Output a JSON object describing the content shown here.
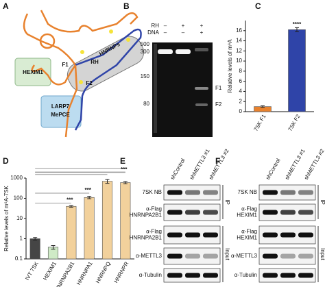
{
  "panels": {
    "A": {
      "label": "A",
      "labels": [
        "HEXIM1",
        "F1",
        "RH",
        "F2",
        "HNRNPs",
        "LARP7",
        "MePCE"
      ]
    },
    "B": {
      "label": "B",
      "conditions": [
        "RH",
        "DNA"
      ],
      "signs": [
        [
          "–",
          "+",
          "+"
        ],
        [
          "–",
          "–",
          "+"
        ]
      ],
      "ladder": [
        "500",
        "300",
        "150",
        "80"
      ],
      "bands": [
        "F1",
        "F2"
      ]
    },
    "E": {
      "label": "E",
      "columns": [
        "shControl",
        "shMETTL3 #1",
        "shMETTL3 #2"
      ],
      "rows": [
        [
          "7SK NB"
        ],
        [
          "α-Flag",
          "HNRNPA2B1"
        ],
        [
          "α-Flag",
          "HNRNPA2B1"
        ],
        [
          "α-METTL3"
        ],
        [
          "α-Tubulin"
        ]
      ],
      "side_labels": [
        "IP",
        "Input"
      ]
    },
    "F": {
      "label": "F",
      "columns": [
        "shControl",
        "shMETTL3 #1",
        "shMETTL3 #2"
      ],
      "rows": [
        [
          "7SK NB"
        ],
        [
          "α-Flag",
          "HEXIM1"
        ],
        [
          "α-Flag",
          "HEXIM1"
        ],
        [
          "α-METTL3"
        ],
        [
          "α-Tubulin"
        ]
      ],
      "side_labels": [
        "IP",
        "Input"
      ]
    }
  },
  "chart_data": [
    {
      "type": "bar",
      "panel_label": "C",
      "ylabel": "Relative levels of m⁶A",
      "categories": [
        "7SK F1",
        "7SK F2"
      ],
      "values": [
        1,
        16.2
      ],
      "errors": [
        0.15,
        0.4
      ],
      "colors": [
        "#e8822e",
        "#2f44a8"
      ],
      "ylim": [
        0,
        18
      ],
      "yticks": [
        0,
        2,
        4,
        6,
        8,
        10,
        12,
        14,
        16
      ],
      "annotations": [
        "****"
      ]
    },
    {
      "type": "bar",
      "panel_label": "D",
      "ylabel": "Relative levels of m⁶A-7SK",
      "log_scale": true,
      "categories": [
        "IVT 7SK",
        "HEXIM1",
        "HNRNPA2B1",
        "HNRNPA1",
        "HNRNPQ",
        "HNRNPR"
      ],
      "values": [
        1,
        0.38,
        40,
        110,
        700,
        600
      ],
      "errors": [
        0.15,
        0.08,
        4,
        15,
        150,
        80
      ],
      "colors": [
        "#454545",
        "#cfeac6",
        "#f2d19c",
        "#f2d19c",
        "#f2d19c",
        "#f2d19c"
      ],
      "ylim": [
        0.1,
        1000
      ],
      "yticks": [
        0.1,
        1,
        10,
        100,
        1000
      ],
      "annotations": [
        "***",
        "***",
        "***"
      ]
    }
  ]
}
